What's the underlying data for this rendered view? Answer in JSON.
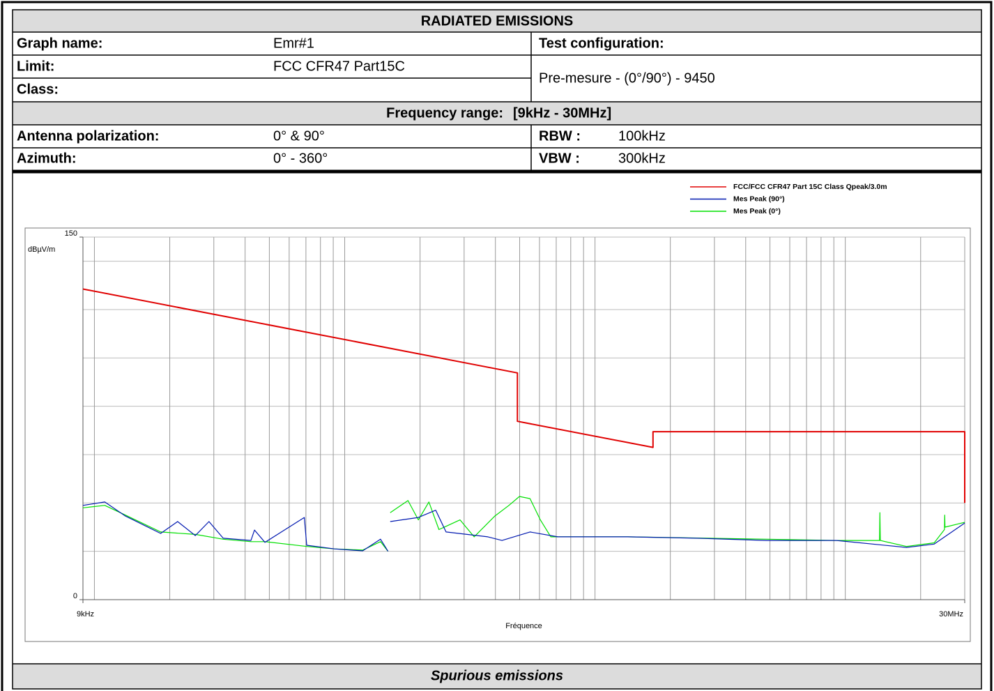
{
  "header": {
    "title": "RADIATED EMISSIONS"
  },
  "info": {
    "graph_name_label": "Graph name:",
    "graph_name": "Emr#1",
    "test_config_label": "Test configuration:",
    "limit_label": "Limit:",
    "limit": "FCC CFR47 Part15C",
    "class_label": "Class:",
    "test_config": "Pre-mesure - (0°/90°) - 9450",
    "freq_range_label": "Frequency range:",
    "freq_range": "[9kHz - 30MHz]",
    "antenna_label": "Antenna polarization:",
    "antenna": "0° & 90°",
    "rbw_label": "RBW :",
    "rbw": "100kHz",
    "azimuth_label": "Azimuth:",
    "azimuth": "0° - 360°",
    "vbw_label": "VBW :",
    "vbw": "300kHz"
  },
  "chart_data": {
    "type": "line",
    "xlabel": "Fréquence",
    "ylabel": "dBµV/m",
    "log_x": true,
    "xlim": [
      9,
      30000
    ],
    "xticks": [
      {
        "value": 9,
        "label": "9kHz"
      },
      {
        "value": 30000,
        "label": "30MHz"
      }
    ],
    "xgrid": [
      10,
      20,
      30,
      40,
      50,
      60,
      70,
      80,
      90,
      100,
      200,
      300,
      400,
      500,
      600,
      700,
      800,
      900,
      1000,
      2000,
      3000,
      4000,
      5000,
      6000,
      7000,
      8000,
      9000,
      10000,
      20000,
      30000
    ],
    "ylim": [
      0,
      150
    ],
    "yticks": [
      0,
      150
    ],
    "ygrid": [
      20,
      40,
      60,
      80,
      100,
      120,
      140,
      150
    ],
    "series": [
      {
        "name": "FCC/FCC  CFR47 Part 15C Class Qpeak/3.0m",
        "color": "#e00000",
        "x": [
          9,
          490,
          490,
          1705,
          1705,
          30000,
          30000
        ],
        "values": [
          128.5,
          93.8,
          73.8,
          63,
          69.5,
          69.5,
          40
        ]
      },
      {
        "name": "Mes Peak (90°)",
        "color": "#0018b0",
        "x": [
          9,
          11,
          13.3,
          18.4,
          21.5,
          25.3,
          28.7,
          32.7,
          42.2,
          43.6,
          48,
          69,
          70.5,
          91,
          118,
          139,
          149,
          150,
          152,
          197,
          231,
          254,
          373,
          425,
          550,
          710,
          1350,
          2560,
          4860,
          9230,
          17550,
          22660,
          30000
        ],
        "values": [
          39,
          40.4,
          34.6,
          27.4,
          32.3,
          26.5,
          32.3,
          25.4,
          24.5,
          28.8,
          23.7,
          34,
          22.5,
          21,
          20.2,
          25,
          20,
          null,
          32.3,
          34,
          37,
          28,
          26,
          24.5,
          28,
          26,
          26,
          25.4,
          24.5,
          24.5,
          21.6,
          23,
          31.7
        ]
      },
      {
        "name": "Mes Peak (0°)",
        "color": "#00e000",
        "x": [
          9,
          11,
          13.3,
          18.4,
          25.3,
          32.7,
          42.2,
          48,
          70.5,
          91,
          118,
          139,
          149,
          150,
          152,
          179,
          197,
          217,
          238,
          289,
          329,
          398,
          453,
          499,
          550,
          605,
          666,
          1350,
          2560,
          4860,
          9230,
          13700,
          13750,
          13800,
          17550,
          22660,
          24900,
          24960,
          25020,
          30000
        ],
        "values": [
          38,
          39,
          35,
          28,
          27,
          25,
          24,
          24,
          22,
          21,
          20.5,
          24,
          20,
          null,
          36,
          41,
          33,
          40.4,
          29,
          33,
          26,
          34.6,
          39,
          42.7,
          41.8,
          33,
          26,
          26,
          25.5,
          25,
          24.5,
          24.5,
          36,
          24.5,
          22,
          23.5,
          29,
          35,
          30,
          32
        ]
      }
    ]
  },
  "footer": {
    "title": "Spurious emissions"
  }
}
